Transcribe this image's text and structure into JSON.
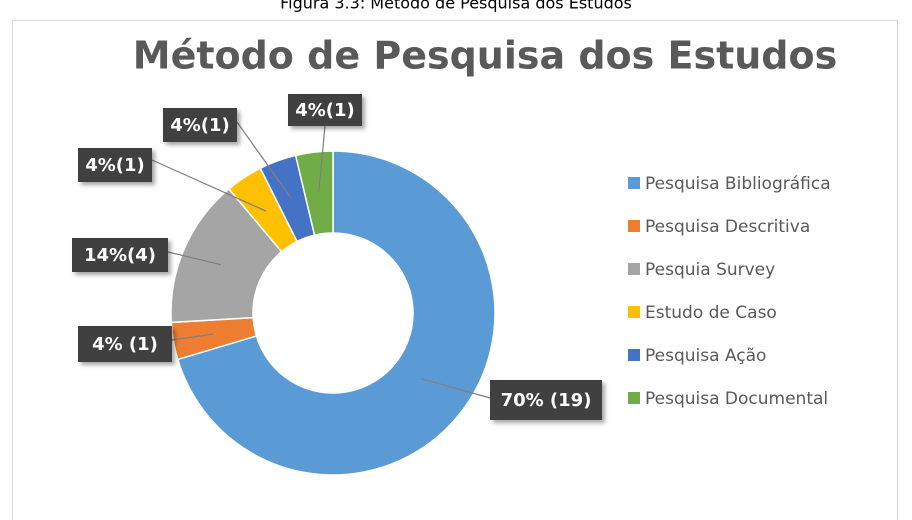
{
  "caption": "Figura 3.3: Método de Pesquisa dos Estudos",
  "chart_data": {
    "type": "donut",
    "title": "Método de Pesquisa dos Estudos",
    "categories": [
      "Pesquisa Bibliográfica",
      "Pesquisa Descritiva",
      "Pesquia Survey",
      "Estudo de Caso",
      "Pesquisa Ação",
      "Pesquisa Documental"
    ],
    "values": [
      19,
      1,
      4,
      1,
      1,
      1
    ],
    "value_labels": [
      "70% (19)",
      "4% (1)",
      "14%(4)",
      "4%(1)",
      "4%(1)",
      "4%(1)"
    ],
    "colors": [
      "#5b9bd5",
      "#ed7d31",
      "#a5a5a5",
      "#ffc000",
      "#4472c4",
      "#70ad47"
    ],
    "legend": "right"
  }
}
